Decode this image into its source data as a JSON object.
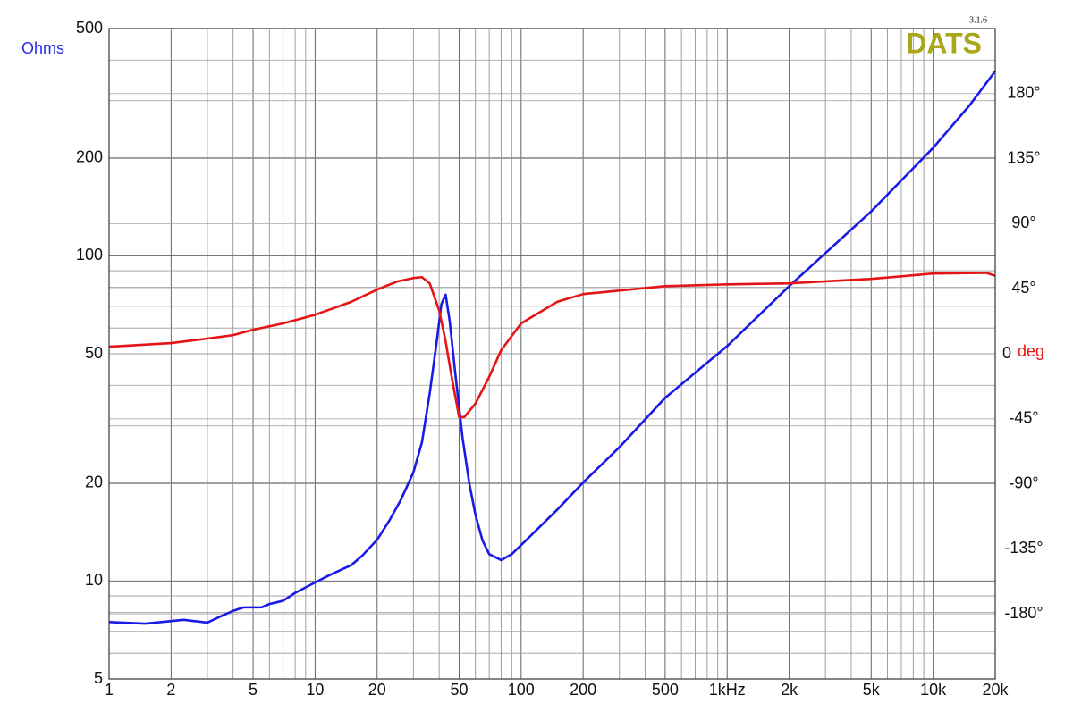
{
  "chart_data": {
    "type": "line",
    "ylabel": "Ohms",
    "y2label": "deg",
    "logo": "DATS",
    "version": "3.1.6",
    "xlog": true,
    "ylog": true,
    "grid": true,
    "xlim": [
      1,
      20000
    ],
    "ylim": [
      5,
      500
    ],
    "y2lim": [
      -225,
      225
    ],
    "xticks": [
      1,
      2,
      5,
      10,
      20,
      50,
      100,
      200,
      500,
      {
        "value": 1000,
        "label": "1kHz"
      },
      {
        "value": 2000,
        "label": "2k"
      },
      {
        "value": 5000,
        "label": "5k"
      },
      {
        "value": 10000,
        "label": "10k"
      },
      {
        "value": 20000,
        "label": "20k"
      }
    ],
    "xminor_ticks": [
      3,
      4,
      6,
      7,
      8,
      9,
      30,
      40,
      60,
      70,
      80,
      90,
      300,
      400,
      600,
      700,
      800,
      900,
      3000,
      4000,
      6000,
      7000,
      8000,
      9000
    ],
    "yticks": [
      5,
      10,
      20,
      50,
      100,
      200,
      500
    ],
    "yminor_ticks": [
      6,
      7,
      8,
      9,
      30,
      40,
      60,
      70,
      80,
      90,
      300,
      400
    ],
    "y2ticks": [
      {
        "value": -180,
        "label": "-180°"
      },
      {
        "value": -135,
        "label": "-135°"
      },
      {
        "value": -90,
        "label": "-90°"
      },
      {
        "value": -45,
        "label": "-45°"
      },
      0,
      {
        "value": 45,
        "label": "45°"
      },
      {
        "value": 90,
        "label": "90°"
      },
      {
        "value": 135,
        "label": "135°"
      },
      {
        "value": 180,
        "label": "180°"
      }
    ],
    "series": [
      {
        "color": "#1a1ae6",
        "x": [
          1,
          1.5,
          2.3,
          3,
          3.5,
          4,
          4.5,
          5.5,
          6,
          7,
          8,
          10,
          12,
          15,
          17,
          20,
          23,
          26,
          30,
          33,
          36,
          39,
          41,
          43,
          45,
          48,
          52,
          56,
          60,
          65,
          70,
          80,
          90,
          100,
          150,
          200,
          300,
          500,
          1000,
          2000,
          5000,
          10000,
          15000,
          20000
        ],
        "values": [
          7.48,
          7.4,
          7.6,
          7.45,
          7.8,
          8.1,
          8.3,
          8.3,
          8.5,
          8.7,
          9.2,
          9.9,
          10.5,
          11.2,
          12.0,
          13.4,
          15.4,
          17.7,
          21.6,
          26.7,
          37.8,
          55,
          71,
          76,
          63,
          43,
          27.5,
          20,
          16,
          13.3,
          12.1,
          11.6,
          12.1,
          12.9,
          16.6,
          20.1,
          25.8,
          36.6,
          52.8,
          80.7,
          137,
          215,
          290,
          370
        ]
      },
      {
        "color": "#e61414",
        "axis": "y2",
        "x": [
          1,
          2,
          3,
          4,
          5,
          7,
          10,
          15,
          20,
          25,
          30,
          33,
          36,
          40,
          43,
          46,
          50,
          53,
          60,
          70,
          80,
          100,
          150,
          200,
          500,
          1000,
          2000,
          5000,
          10000,
          18000,
          20000
        ],
        "values": [
          4.9,
          7.4,
          10.5,
          12.9,
          16.6,
          21,
          27,
          36,
          44.4,
          50,
          52.4,
          53,
          48.7,
          30,
          8.6,
          -16,
          -43.8,
          -43.8,
          -34.5,
          -16,
          2.5,
          21,
          36,
          41.3,
          46.8,
          48,
          48.7,
          51.8,
          55.5,
          56,
          54
        ]
      }
    ]
  }
}
